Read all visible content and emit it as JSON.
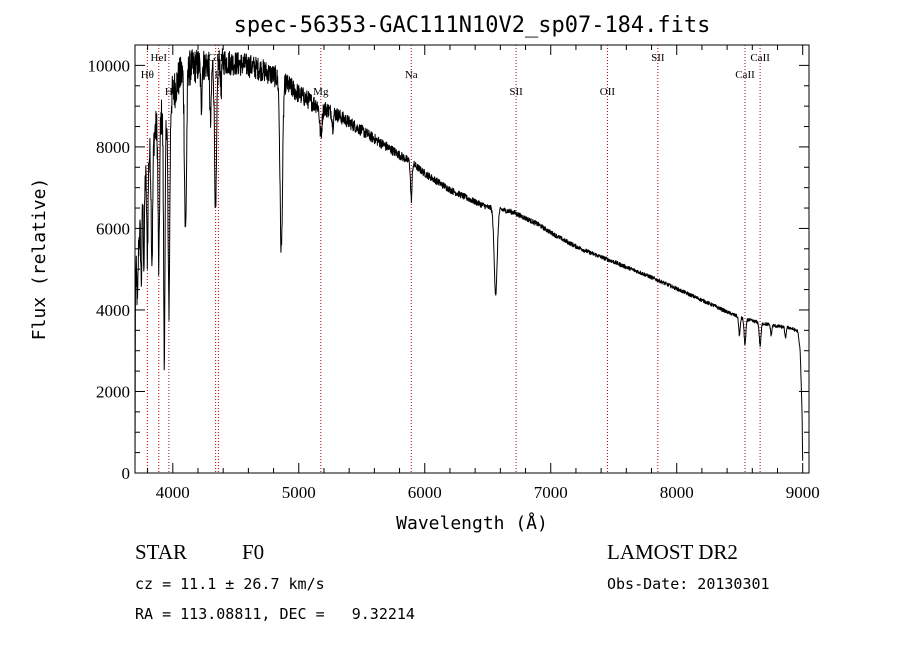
{
  "chart_data": {
    "type": "line",
    "title": "spec-56353-GAC111N10V2_sp07-184.fits",
    "xlabel": "Wavelength (Å)",
    "ylabel": "Flux (relative)",
    "xlim": [
      3700,
      9050
    ],
    "ylim": [
      0,
      10500
    ],
    "x_ticks": [
      {
        "value": 4000,
        "label": "4000"
      },
      {
        "value": 5000,
        "label": "5000"
      },
      {
        "value": 6000,
        "label": "6000"
      },
      {
        "value": 7000,
        "label": "7000"
      },
      {
        "value": 8000,
        "label": "8000"
      },
      {
        "value": 9000,
        "label": "9000"
      }
    ],
    "y_ticks": [
      {
        "value": 0,
        "label": "0"
      },
      {
        "value": 2000,
        "label": "2000"
      },
      {
        "value": 4000,
        "label": "4000"
      },
      {
        "value": 6000,
        "label": "6000"
      },
      {
        "value": 8000,
        "label": "8000"
      },
      {
        "value": 10000,
        "label": "10000"
      }
    ],
    "line_color": "#000000",
    "marker_color": "#b00000",
    "spectral_lines": [
      {
        "label": "Hθ",
        "wavelength": 3798,
        "level": 3
      },
      {
        "label": "HeI",
        "wavelength": 3889,
        "level": 1
      },
      {
        "label": "H",
        "wavelength": 3969,
        "level": 4
      },
      {
        "label": "GII",
        "wavelength": 4340,
        "level": 2
      },
      {
        "label": "H",
        "wavelength": 4362,
        "level": 3
      },
      {
        "label": "Mg",
        "wavelength": 5175,
        "level": 4
      },
      {
        "label": "Na",
        "wavelength": 5893,
        "level": 3
      },
      {
        "label": "SII",
        "wavelength": 6725,
        "level": 4
      },
      {
        "label": "OII",
        "wavelength": 7450,
        "level": 4
      },
      {
        "label": "SII",
        "wavelength": 7850,
        "level": 1
      },
      {
        "label": "CaII",
        "wavelength": 8542,
        "level": 3
      },
      {
        "label": "CaII",
        "wavelength": 8662,
        "level": 1
      }
    ],
    "continuum": [
      [
        3700,
        0
      ],
      [
        3703,
        4600
      ],
      [
        3720,
        5400
      ],
      [
        3750,
        6200
      ],
      [
        3780,
        7200
      ],
      [
        3800,
        7600
      ],
      [
        3830,
        8000
      ],
      [
        3860,
        8400
      ],
      [
        3900,
        8700
      ],
      [
        3950,
        8900
      ],
      [
        4000,
        9300
      ],
      [
        4050,
        9700
      ],
      [
        4100,
        9900
      ],
      [
        4200,
        10000
      ],
      [
        4300,
        10050
      ],
      [
        4400,
        10100
      ],
      [
        4500,
        10050
      ],
      [
        4600,
        10000
      ],
      [
        4700,
        9900
      ],
      [
        4800,
        9750
      ],
      [
        4850,
        9650
      ],
      [
        4900,
        9550
      ],
      [
        5000,
        9300
      ],
      [
        5100,
        9100
      ],
      [
        5200,
        8950
      ],
      [
        5300,
        8800
      ],
      [
        5400,
        8600
      ],
      [
        5500,
        8400
      ],
      [
        5600,
        8200
      ],
      [
        5700,
        8000
      ],
      [
        5800,
        7800
      ],
      [
        5900,
        7600
      ],
      [
        6000,
        7350
      ],
      [
        6100,
        7150
      ],
      [
        6200,
        6950
      ],
      [
        6300,
        6800
      ],
      [
        6400,
        6650
      ],
      [
        6500,
        6520
      ],
      [
        6600,
        6470
      ],
      [
        6700,
        6400
      ],
      [
        6800,
        6250
      ],
      [
        6900,
        6100
      ],
      [
        7000,
        5900
      ],
      [
        7100,
        5720
      ],
      [
        7200,
        5560
      ],
      [
        7300,
        5420
      ],
      [
        7400,
        5300
      ],
      [
        7500,
        5180
      ],
      [
        7600,
        5050
      ],
      [
        7700,
        4930
      ],
      [
        7800,
        4800
      ],
      [
        7900,
        4660
      ],
      [
        8000,
        4520
      ],
      [
        8100,
        4380
      ],
      [
        8200,
        4240
      ],
      [
        8300,
        4100
      ],
      [
        8400,
        3950
      ],
      [
        8500,
        3820
      ],
      [
        8600,
        3730
      ],
      [
        8700,
        3660
      ],
      [
        8800,
        3600
      ],
      [
        8900,
        3560
      ],
      [
        8960,
        3480
      ],
      [
        8980,
        3000
      ],
      [
        8995,
        1500
      ],
      [
        9000,
        300
      ]
    ],
    "absorption_features": [
      {
        "center": 3720,
        "depth": 1300,
        "width": 4
      },
      {
        "center": 3750,
        "depth": 1500,
        "width": 4
      },
      {
        "center": 3771,
        "depth": 1800,
        "width": 4
      },
      {
        "center": 3798,
        "depth": 2200,
        "width": 5
      },
      {
        "center": 3835,
        "depth": 2800,
        "width": 6
      },
      {
        "center": 3889,
        "depth": 3600,
        "width": 6
      },
      {
        "center": 3933,
        "depth": 5900,
        "width": 6
      },
      {
        "center": 3969,
        "depth": 5000,
        "width": 7
      },
      {
        "center": 4101,
        "depth": 4000,
        "width": 8
      },
      {
        "center": 4226,
        "depth": 1000,
        "width": 5
      },
      {
        "center": 4300,
        "depth": 1500,
        "width": 6
      },
      {
        "center": 4340,
        "depth": 3700,
        "width": 8
      },
      {
        "center": 4383,
        "depth": 800,
        "width": 4
      },
      {
        "center": 4861,
        "depth": 4200,
        "width": 10
      },
      {
        "center": 5175,
        "depth": 700,
        "width": 9
      },
      {
        "center": 5270,
        "depth": 350,
        "width": 5
      },
      {
        "center": 5893,
        "depth": 900,
        "width": 6
      },
      {
        "center": 6563,
        "depth": 2100,
        "width": 12
      },
      {
        "center": 8498,
        "depth": 450,
        "width": 6
      },
      {
        "center": 8542,
        "depth": 620,
        "width": 7
      },
      {
        "center": 8662,
        "depth": 560,
        "width": 7
      },
      {
        "center": 8750,
        "depth": 250,
        "width": 5
      },
      {
        "center": 8863,
        "depth": 280,
        "width": 5
      }
    ],
    "noise_amplitude": [
      [
        3700,
        450
      ],
      [
        4000,
        500
      ],
      [
        4500,
        300
      ],
      [
        4900,
        260
      ],
      [
        5200,
        200
      ],
      [
        5500,
        140
      ],
      [
        6000,
        90
      ],
      [
        6500,
        70
      ],
      [
        7000,
        55
      ],
      [
        8000,
        45
      ],
      [
        9000,
        40
      ]
    ]
  },
  "info": {
    "object_class": "STAR",
    "subclass": "F0",
    "redshift": "cz = 11.1 ± 26.7 km/s",
    "coordinates": "RA = 113.08811, DEC =   9.32214",
    "survey": "LAMOST DR2",
    "obs_date": "Obs-Date: 20130301"
  }
}
